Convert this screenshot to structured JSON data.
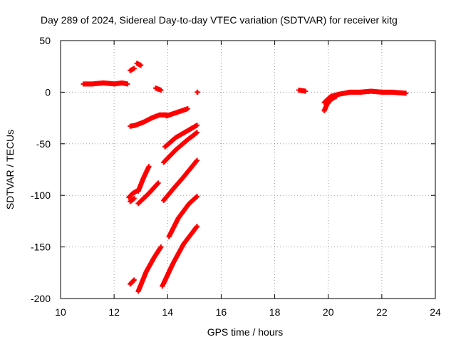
{
  "chart_data": {
    "type": "scatter",
    "title": "Day 289 of 2024, Sidereal Day-to-day VTEC variation (SDTVAR) for receiver kitg",
    "xlabel": "GPS time / hours",
    "ylabel": "SDTVAR / TECUs",
    "xlim": [
      10,
      24
    ],
    "ylim": [
      -200,
      50
    ],
    "x_ticks": [
      10,
      12,
      14,
      16,
      18,
      20,
      22,
      24
    ],
    "y_ticks": [
      50,
      0,
      -50,
      -100,
      -150,
      -200
    ],
    "x_tick_labels": [
      "10",
      "12",
      "14",
      "16",
      "18",
      "20",
      "22",
      "24"
    ],
    "y_tick_labels": [
      "50",
      "0",
      "-50",
      "-100",
      "-150",
      "-200"
    ],
    "grid": true,
    "marker": "+",
    "color": "#ff0000",
    "series": [
      {
        "name": "s1",
        "x": [
          10.85,
          11.2,
          11.6,
          12.0,
          12.3,
          12.5
        ],
        "y": [
          8,
          8,
          9,
          8,
          9,
          8
        ]
      },
      {
        "name": "s2",
        "x": [
          12.6,
          12.75
        ],
        "y": [
          21,
          23
        ]
      },
      {
        "name": "s3",
        "x": [
          12.85,
          13.0
        ],
        "y": [
          28,
          26
        ]
      },
      {
        "name": "s4",
        "x": [
          13.55,
          13.75
        ],
        "y": [
          4,
          2
        ]
      },
      {
        "name": "s5",
        "x": [
          15.1,
          15.12
        ],
        "y": [
          0,
          0
        ]
      },
      {
        "name": "s6",
        "x": [
          18.9,
          19.15
        ],
        "y": [
          2,
          1
        ]
      },
      {
        "name": "s7",
        "x": [
          19.85,
          20.1,
          20.4,
          20.8,
          21.2,
          21.6,
          22.0,
          22.4,
          22.9
        ],
        "y": [
          -10,
          -4,
          -2,
          0,
          0,
          1,
          0,
          0,
          -1
        ]
      },
      {
        "name": "s8",
        "x": [
          19.85,
          19.95,
          20.1,
          20.3
        ],
        "y": [
          -18,
          -12,
          -7,
          -4
        ]
      },
      {
        "name": "s9",
        "x": [
          12.6,
          12.8,
          13.1,
          13.4,
          13.7,
          13.95
        ],
        "y": [
          -33,
          -32,
          -29,
          -25,
          -22,
          -22
        ]
      },
      {
        "name": "s10",
        "x": [
          13.95,
          14.3,
          14.75
        ],
        "y": [
          -23,
          -20,
          -16
        ]
      },
      {
        "name": "s11",
        "x": [
          13.9,
          14.3,
          14.7,
          15.1
        ],
        "y": [
          -53,
          -44,
          -38,
          -32
        ]
      },
      {
        "name": "s12",
        "x": [
          13.85,
          14.3,
          14.7,
          15.1
        ],
        "y": [
          -68,
          -56,
          -47,
          -39
        ]
      },
      {
        "name": "s13",
        "x": [
          12.55,
          12.7,
          12.9
        ],
        "y": [
          -102,
          -98,
          -95
        ]
      },
      {
        "name": "s14",
        "x": [
          12.6,
          12.75
        ],
        "y": [
          -106,
          -103
        ]
      },
      {
        "name": "s15",
        "x": [
          12.9,
          13.1,
          13.3
        ],
        "y": [
          -96,
          -83,
          -72
        ]
      },
      {
        "name": "s16",
        "x": [
          12.9,
          13.3,
          13.65
        ],
        "y": [
          -108,
          -98,
          -88
        ]
      },
      {
        "name": "s17",
        "x": [
          13.85,
          14.2,
          14.6,
          15.1
        ],
        "y": [
          -105,
          -94,
          -82,
          -66
        ]
      },
      {
        "name": "s18",
        "x": [
          14.05,
          14.4,
          14.8,
          15.1
        ],
        "y": [
          -140,
          -122,
          -108,
          -101
        ]
      },
      {
        "name": "s19",
        "x": [
          12.6,
          12.75
        ],
        "y": [
          -186,
          -182
        ]
      },
      {
        "name": "s20",
        "x": [
          12.9,
          13.2,
          13.5,
          13.75
        ],
        "y": [
          -193,
          -174,
          -160,
          -150
        ]
      },
      {
        "name": "s21",
        "x": [
          13.8,
          14.2,
          14.6,
          15.1
        ],
        "y": [
          -188,
          -166,
          -147,
          -130
        ]
      }
    ]
  }
}
